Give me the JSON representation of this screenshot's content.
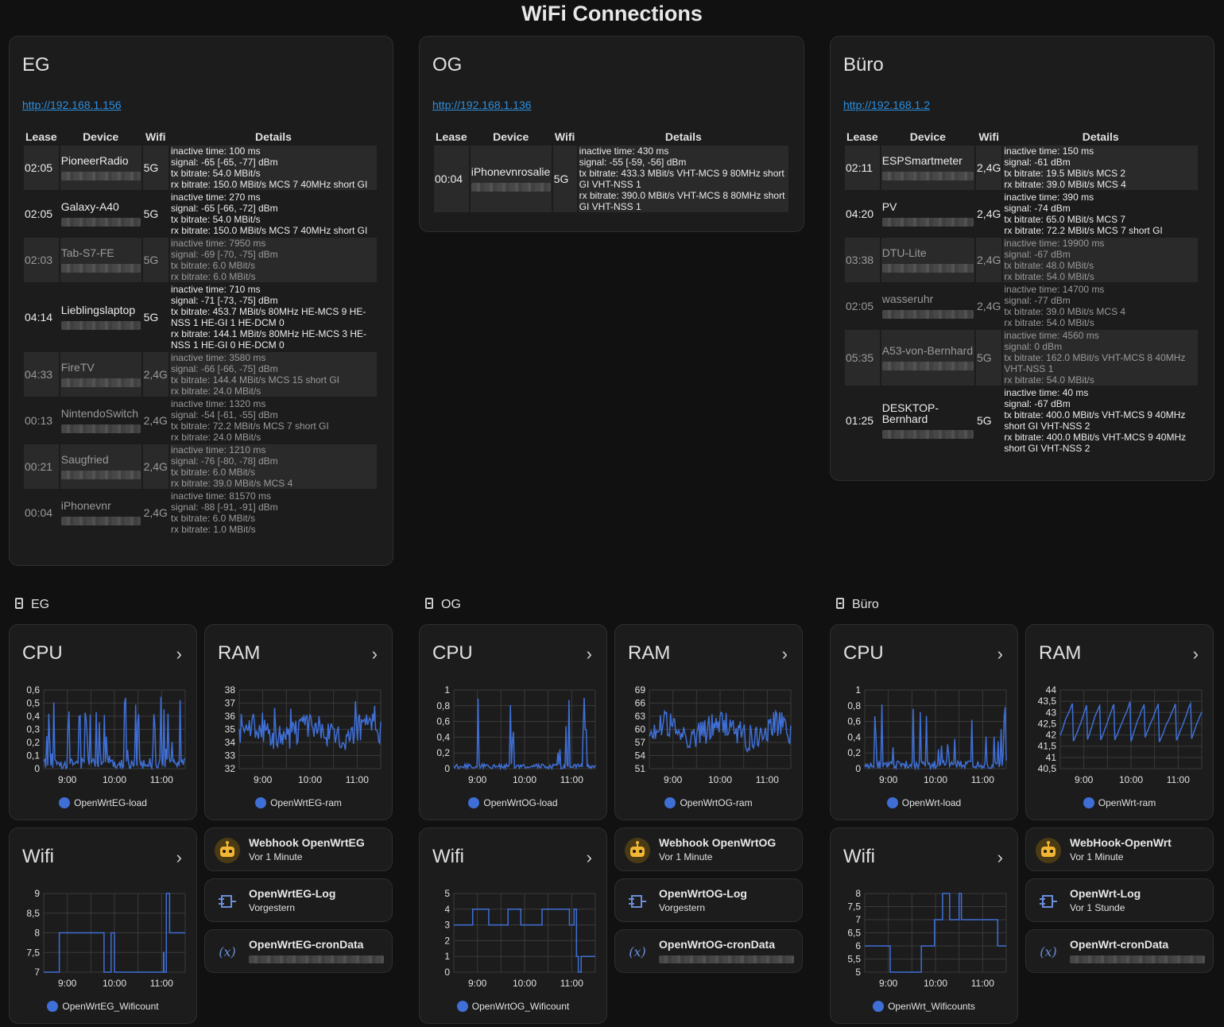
{
  "page_title": "WiFi Connections",
  "headers": {
    "lease": "Lease",
    "device": "Device",
    "wifi": "Wifi",
    "details": "Details"
  },
  "wifi_cards": [
    {
      "title": "EG",
      "link": "http://192.168.1.156",
      "rows": [
        {
          "lease": "02:05",
          "device": "PioneerRadio",
          "wifi": "5G",
          "active": true,
          "details": [
            "inactive time: 100 ms",
            "signal: -65 [-65, -77] dBm",
            "tx bitrate: 54.0 MBit/s",
            "rx bitrate: 150.0 MBit/s MCS 7 40MHz short GI"
          ]
        },
        {
          "lease": "02:05",
          "device": "Galaxy-A40",
          "wifi": "5G",
          "active": true,
          "details": [
            "inactive time: 270 ms",
            "signal: -65 [-66, -72] dBm",
            "tx bitrate: 54.0 MBit/s",
            "rx bitrate: 150.0 MBit/s MCS 7 40MHz short GI"
          ]
        },
        {
          "lease": "02:03",
          "device": "Tab-S7-FE",
          "wifi": "5G",
          "active": false,
          "details": [
            "inactive time: 7950 ms",
            "signal: -69 [-70, -75] dBm",
            "tx bitrate: 6.0 MBit/s",
            "rx bitrate: 6.0 MBit/s"
          ]
        },
        {
          "lease": "04:14",
          "device": "Lieblingslaptop",
          "wifi": "5G",
          "active": true,
          "details": [
            "inactive time: 710 ms",
            "signal: -71 [-73, -75] dBm",
            "tx bitrate: 453.7 MBit/s 80MHz HE-MCS 9 HE-NSS 1 HE-GI 1 HE-DCM 0",
            "rx bitrate: 144.1 MBit/s 80MHz HE-MCS 3 HE-NSS 1 HE-GI 0 HE-DCM 0"
          ]
        },
        {
          "lease": "04:33",
          "device": "FireTV",
          "wifi": "2,4G",
          "active": false,
          "details": [
            "inactive time: 3580 ms",
            "signal: -66 [-66, -75] dBm",
            "tx bitrate: 144.4 MBit/s MCS 15 short GI",
            "rx bitrate: 24.0 MBit/s"
          ]
        },
        {
          "lease": "00:13",
          "device": "NintendoSwitch",
          "wifi": "2,4G",
          "active": false,
          "details": [
            "inactive time: 1320 ms",
            "signal: -54 [-61, -55] dBm",
            "tx bitrate: 72.2 MBit/s MCS 7 short GI",
            "rx bitrate: 24.0 MBit/s"
          ]
        },
        {
          "lease": "00:21",
          "device": "Saugfried",
          "wifi": "2,4G",
          "active": false,
          "details": [
            "inactive time: 1210 ms",
            "signal: -76 [-80, -78] dBm",
            "tx bitrate: 6.0 MBit/s",
            "rx bitrate: 39.0 MBit/s MCS 4"
          ]
        },
        {
          "lease": "00:04",
          "device": "iPhonevnr",
          "wifi": "2,4G",
          "active": false,
          "details": [
            "inactive time: 81570 ms",
            "signal: -88 [-91, -91] dBm",
            "tx bitrate: 6.0 MBit/s",
            "rx bitrate: 1.0 MBit/s"
          ]
        }
      ]
    },
    {
      "title": "OG",
      "link": "http://192.168.1.136",
      "rows": [
        {
          "lease": "00:04",
          "device": "iPhonevnrosalie",
          "wifi": "5G",
          "active": true,
          "details": [
            "inactive time: 430 ms",
            "signal: -55 [-59, -56] dBm",
            "tx bitrate: 433.3 MBit/s VHT-MCS 9 80MHz short GI VHT-NSS 1",
            "rx bitrate: 390.0 MBit/s VHT-MCS 8 80MHz short GI VHT-NSS 1"
          ]
        }
      ]
    },
    {
      "title": "Büro",
      "link": "http://192.168.1.2",
      "rows": [
        {
          "lease": "02:11",
          "device": "ESPSmartmeter",
          "wifi": "2,4G",
          "active": true,
          "details": [
            "inactive time: 150 ms",
            "signal: -61 dBm",
            "tx bitrate: 19.5 MBit/s MCS 2",
            "rx bitrate: 39.0 MBit/s MCS 4"
          ]
        },
        {
          "lease": "04:20",
          "device": "PV",
          "wifi": "2,4G",
          "active": true,
          "details": [
            "inactive time: 390 ms",
            "signal: -74 dBm",
            "tx bitrate: 65.0 MBit/s MCS 7",
            "rx bitrate: 72.2 MBit/s MCS 7 short GI"
          ]
        },
        {
          "lease": "03:38",
          "device": "DTU-Lite",
          "wifi": "2,4G",
          "active": false,
          "details": [
            "inactive time: 19900 ms",
            "signal: -67 dBm",
            "tx bitrate: 48.0 MBit/s",
            "rx bitrate: 54.0 MBit/s"
          ]
        },
        {
          "lease": "02:05",
          "device": "wasseruhr",
          "wifi": "2,4G",
          "active": false,
          "details": [
            "inactive time: 14700 ms",
            "signal: -77 dBm",
            "tx bitrate: 39.0 MBit/s MCS 4",
            "rx bitrate: 54.0 MBit/s"
          ]
        },
        {
          "lease": "05:35",
          "device": "A53-von-Bernhard",
          "wifi": "5G",
          "active": false,
          "details": [
            "inactive time: 4560 ms",
            "signal: 0 dBm",
            "tx bitrate: 162.0 MBit/s VHT-MCS 8 40MHz VHT-NSS 1",
            "rx bitrate: 54.0 MBit/s"
          ]
        },
        {
          "lease": "01:25",
          "device": "DESKTOP-Bernhard",
          "wifi": "5G",
          "active": true,
          "details": [
            "inactive time: 40 ms",
            "signal: -67 dBm",
            "tx bitrate: 400.0 MBit/s VHT-MCS 9 40MHz short GI VHT-NSS 2",
            "rx bitrate: 400.0 MBit/s VHT-MCS 9 40MHz short GI VHT-NSS 2"
          ]
        }
      ]
    }
  ],
  "groups": [
    "EG",
    "OG",
    "Büro"
  ],
  "chart_data": [
    {
      "id": "eg-cpu",
      "type": "line",
      "title": "CPU",
      "series_name": "OpenWrtEG-load",
      "yticks": [
        "0,6",
        "0,5",
        "0,4",
        "0,3",
        "0,2",
        "0,1",
        "0"
      ],
      "ylim": [
        0,
        0.6
      ],
      "xticks": [
        "9:00",
        "10:00",
        "11:00"
      ],
      "x_hours": [
        8.5,
        11.5
      ],
      "style": "spiky",
      "base": 0.04,
      "noise": 0.04,
      "peak": 0.55,
      "spike_prob": 0.18
    },
    {
      "id": "eg-ram",
      "type": "line",
      "title": "RAM",
      "series_name": "OpenWrtEG-ram",
      "yticks": [
        "38",
        "37",
        "36",
        "35",
        "34",
        "33",
        "32"
      ],
      "ylim": [
        32,
        38
      ],
      "xticks": [
        "9:00",
        "10:00",
        "11:00"
      ],
      "x_hours": [
        8.5,
        11.5
      ],
      "style": "noisy",
      "base": 34.8,
      "noise": 1.0,
      "peak": 37.2
    },
    {
      "id": "og-cpu",
      "type": "line",
      "title": "CPU",
      "series_name": "OpenWrtOG-load",
      "yticks": [
        "1",
        "0,8",
        "0,6",
        "0,4",
        "0,2",
        "0"
      ],
      "ylim": [
        0,
        1
      ],
      "xticks": [
        "9:00",
        "10:00",
        "11:00"
      ],
      "x_hours": [
        8.5,
        11.5
      ],
      "style": "spiky",
      "base": 0.03,
      "noise": 0.03,
      "peak": 0.9,
      "spike_prob": 0.04
    },
    {
      "id": "og-ram",
      "type": "line",
      "title": "RAM",
      "series_name": "OpenWrtOG-ram",
      "yticks": [
        "69",
        "66",
        "63",
        "60",
        "57",
        "54",
        "51"
      ],
      "ylim": [
        51,
        69
      ],
      "xticks": [
        "9:00",
        "10:00",
        "11:00"
      ],
      "x_hours": [
        8.5,
        11.5
      ],
      "style": "noisy",
      "base": 59.5,
      "noise": 3.2,
      "peak": 67.5
    },
    {
      "id": "buero-cpu",
      "type": "line",
      "title": "CPU",
      "series_name": "OpenWrt-load",
      "yticks": [
        "1",
        "0,8",
        "0,6",
        "0,4",
        "0,2",
        "0"
      ],
      "ylim": [
        0,
        1
      ],
      "xticks": [
        "9:00",
        "10:00",
        "11:00"
      ],
      "x_hours": [
        8.5,
        11.5
      ],
      "style": "spiky",
      "base": 0.05,
      "noise": 0.05,
      "peak": 0.85,
      "spike_prob": 0.2
    },
    {
      "id": "buero-ram",
      "type": "line",
      "title": "RAM",
      "series_name": "OpenWrt-ram",
      "yticks": [
        "44",
        "43,5",
        "43",
        "42,5",
        "42",
        "41,5",
        "41",
        "40,5"
      ],
      "ylim": [
        40.5,
        44
      ],
      "xticks": [
        "9:00",
        "10:00",
        "11:00"
      ],
      "x_hours": [
        8.5,
        11.5
      ],
      "style": "saw",
      "base": 41.9,
      "noise": 0.4,
      "peak": 43.7
    },
    {
      "id": "eg-wifi",
      "type": "line",
      "title": "Wifi",
      "series_name": "OpenWrtEG_Wificount",
      "yticks": [
        "9",
        "8,5",
        "8",
        "7,5",
        "7"
      ],
      "ylim": [
        7,
        9
      ],
      "xticks": [
        "9:00",
        "10:00",
        "11:00"
      ],
      "x_hours": [
        8.5,
        11.5
      ],
      "style": "step",
      "steps": [
        [
          8.5,
          7
        ],
        [
          8.83,
          8
        ],
        [
          9.78,
          7
        ],
        [
          9.93,
          8
        ],
        [
          10.0,
          7
        ],
        [
          11.04,
          7.5
        ],
        [
          11.05,
          7
        ],
        [
          11.1,
          9
        ],
        [
          11.17,
          8
        ],
        [
          11.5,
          8
        ]
      ]
    },
    {
      "id": "og-wifi",
      "type": "line",
      "title": "Wifi",
      "series_name": "OpenWrtOG_Wificount",
      "yticks": [
        "5",
        "4",
        "3",
        "2",
        "1",
        "0"
      ],
      "ylim": [
        0,
        5
      ],
      "xticks": [
        "9:00",
        "10:00",
        "11:00"
      ],
      "x_hours": [
        8.5,
        11.5
      ],
      "style": "step",
      "steps": [
        [
          8.5,
          3
        ],
        [
          8.9,
          4
        ],
        [
          9.24,
          3
        ],
        [
          9.65,
          4
        ],
        [
          9.92,
          3
        ],
        [
          10.37,
          4
        ],
        [
          10.95,
          3
        ],
        [
          11.05,
          4
        ],
        [
          11.1,
          1
        ],
        [
          11.14,
          0
        ],
        [
          11.2,
          1
        ],
        [
          11.5,
          1
        ]
      ]
    },
    {
      "id": "buero-wifi",
      "type": "line",
      "title": "Wifi",
      "series_name": "OpenWrt_Wificounts",
      "yticks": [
        "8",
        "7,5",
        "7",
        "6,5",
        "6",
        "5,5",
        "5"
      ],
      "ylim": [
        5,
        8
      ],
      "xticks": [
        "9:00",
        "10:00",
        "11:00"
      ],
      "x_hours": [
        8.5,
        11.5
      ],
      "style": "step",
      "steps": [
        [
          8.5,
          6
        ],
        [
          9.04,
          5
        ],
        [
          9.7,
          6
        ],
        [
          9.98,
          7
        ],
        [
          10.15,
          8
        ],
        [
          10.3,
          7
        ],
        [
          10.5,
          8
        ],
        [
          10.55,
          7
        ],
        [
          11.32,
          6
        ],
        [
          11.5,
          6
        ]
      ]
    }
  ],
  "entities": [
    {
      "name": "Webhook OpenWrtEG",
      "sub": "Vor 1 Minute",
      "icon": "robot-icon"
    },
    {
      "name": "OpenWrtEG-Log",
      "sub": "Vorgestern",
      "icon": "log-icon"
    },
    {
      "name": "OpenWrtEG-cronData",
      "sub": "",
      "icon": "variable-icon"
    },
    {
      "name": "Webhook OpenWrtOG",
      "sub": "Vor 1 Minute",
      "icon": "robot-icon"
    },
    {
      "name": "OpenWrtOG-Log",
      "sub": "Vorgestern",
      "icon": "log-icon"
    },
    {
      "name": "OpenWrtOG-cronData",
      "sub": "",
      "icon": "variable-icon"
    },
    {
      "name": "WebHook-OpenWrt",
      "sub": "Vor 1 Minute",
      "icon": "robot-icon"
    },
    {
      "name": "OpenWrt-Log",
      "sub": "Vor 1 Stunde",
      "icon": "log-icon"
    },
    {
      "name": "OpenWrt-cronData",
      "sub": "",
      "icon": "variable-icon"
    }
  ],
  "colors": {
    "accent": "#3f6fd6",
    "link": "#2d8fe0",
    "card": "#1c1c1c",
    "robot": "#f2b633"
  }
}
